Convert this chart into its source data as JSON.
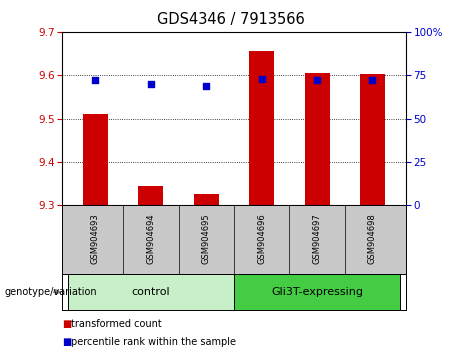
{
  "title": "GDS4346 / 7913566",
  "samples": [
    "GSM904693",
    "GSM904694",
    "GSM904695",
    "GSM904696",
    "GSM904697",
    "GSM904698"
  ],
  "bar_values": [
    9.51,
    9.345,
    9.325,
    9.655,
    9.605,
    9.602
  ],
  "percentile_values": [
    72,
    70,
    69,
    73,
    72,
    72
  ],
  "ylim_left": [
    9.3,
    9.7
  ],
  "ylim_right": [
    0,
    100
  ],
  "yticks_left": [
    9.3,
    9.4,
    9.5,
    9.6,
    9.7
  ],
  "yticks_right": [
    0,
    25,
    50,
    75,
    100
  ],
  "bar_color": "#cc0000",
  "dot_color": "#0000cc",
  "ctrl_color_light": "#c8f0c8",
  "gli_color": "#44cc44",
  "sample_bg": "#c8c8c8",
  "bar_width": 0.45,
  "left_label_color": "#cc0000",
  "right_label_color": "#0000cc"
}
